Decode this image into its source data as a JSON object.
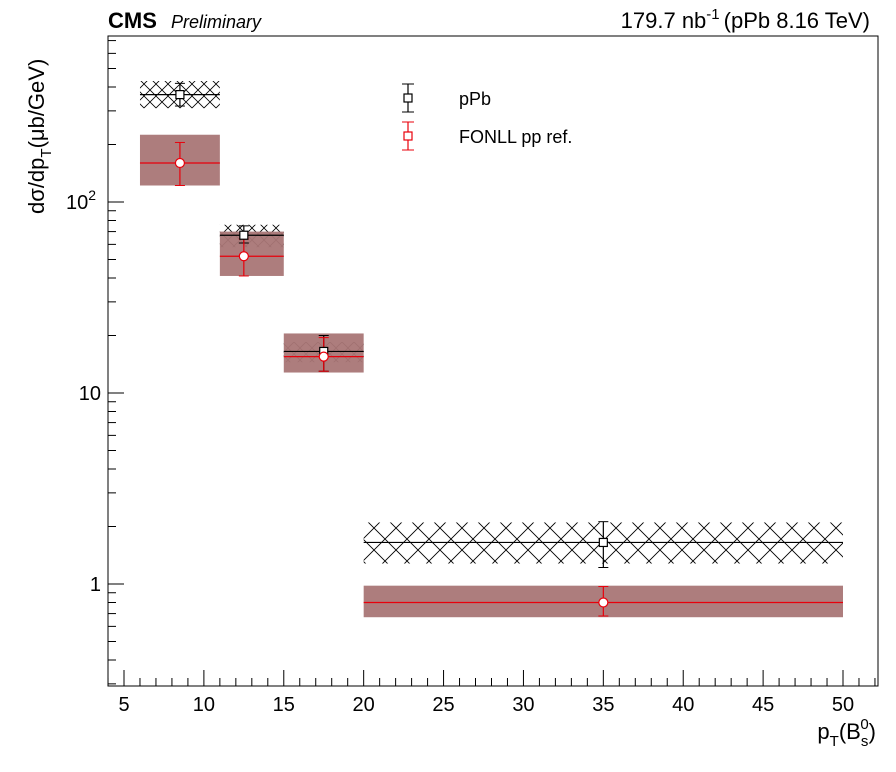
{
  "header": {
    "experiment": "CMS",
    "status": "Preliminary",
    "lumi_value": "179.7 nb",
    "lumi_exponent": "-1",
    "lumi_suffix": "(pPb 8.16 TeV)"
  },
  "chart_data": {
    "type": "scatter",
    "xlabel": {
      "base": "p",
      "sub": "T",
      "paren_open": "(B",
      "meson_sub": "s",
      "meson_sup": "0",
      "paren_close": ")"
    },
    "ylabel": {
      "text1": "dσ/dp",
      "sub": "T",
      "text2": "(μb/GeV)"
    },
    "xlim": [
      4,
      52
    ],
    "ylim": [
      0.3,
      700
    ],
    "y_scale": "log",
    "grid": false,
    "legend_position": "top-center",
    "x_ticks": [
      "5",
      "10",
      "15",
      "20",
      "25",
      "30",
      "35",
      "40",
      "45",
      "50"
    ],
    "y_ticks": [
      {
        "label": "1",
        "value": 1,
        "sup": ""
      },
      {
        "label": "10",
        "value": 10,
        "sup": ""
      },
      {
        "label": "10",
        "value": 100,
        "sup": "2"
      }
    ],
    "series": [
      {
        "name": "pPb",
        "color": "#000000",
        "marker": "open-square",
        "sys_style": "crosshatch",
        "points": [
          {
            "x": 8.5,
            "y": 365,
            "xlo": 6,
            "xhi": 11,
            "stat_lo": 318,
            "stat_hi": 418,
            "sys_lo": 310,
            "sys_hi": 430
          },
          {
            "x": 12.5,
            "y": 67,
            "xlo": 11,
            "xhi": 15,
            "stat_lo": 61,
            "stat_hi": 75,
            "sys_lo": 58,
            "sys_hi": 76
          },
          {
            "x": 17.5,
            "y": 16.5,
            "xlo": 15,
            "xhi": 20,
            "stat_lo": 13,
            "stat_hi": 20,
            "sys_lo": 14.5,
            "sys_hi": 18.5
          },
          {
            "x": 35,
            "y": 1.65,
            "xlo": 20,
            "xhi": 50,
            "stat_lo": 1.22,
            "stat_hi": 2.12,
            "sys_lo": 1.28,
            "sys_hi": 2.1
          }
        ]
      },
      {
        "name": "FONLL pp ref.",
        "color": "#e8000b",
        "marker": "open-circle",
        "sys_style": "filled-band",
        "band_color": "#a97676",
        "points": [
          {
            "x": 8.5,
            "y": 160,
            "xlo": 6,
            "xhi": 11,
            "stat_lo": 122,
            "stat_hi": 205,
            "sys_lo": 122,
            "sys_hi": 225
          },
          {
            "x": 12.5,
            "y": 52,
            "xlo": 11,
            "xhi": 15,
            "stat_lo": 41,
            "stat_hi": 64,
            "sys_lo": 41,
            "sys_hi": 70
          },
          {
            "x": 17.5,
            "y": 15.5,
            "xlo": 15,
            "xhi": 20,
            "stat_lo": 13,
            "stat_hi": 19.5,
            "sys_lo": 12.8,
            "sys_hi": 20.5
          },
          {
            "x": 35,
            "y": 0.8,
            "xlo": 20,
            "xhi": 50,
            "stat_lo": 0.68,
            "stat_hi": 0.97,
            "sys_lo": 0.67,
            "sys_hi": 0.98
          }
        ]
      }
    ]
  }
}
